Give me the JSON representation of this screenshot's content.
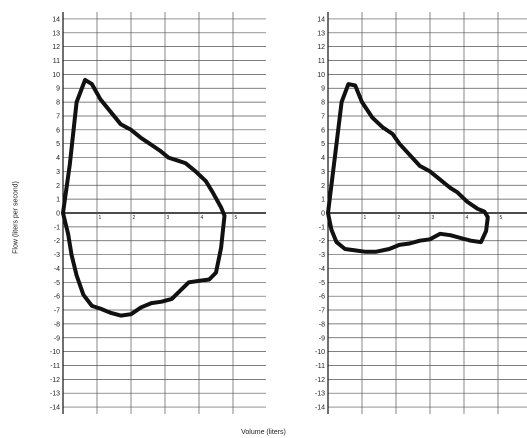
{
  "ylabel": "Flow (liters per second)",
  "xlabel": "Volume (liters)",
  "chart_data": [
    {
      "type": "line",
      "title": "",
      "xlabel": "Volume (liters)",
      "ylabel": "Flow (liters per second)",
      "xlim": [
        0,
        5.8
      ],
      "ylim": [
        -14.5,
        14.5
      ],
      "y_ticks": [
        14,
        13,
        12,
        11,
        10,
        9,
        8,
        7,
        6,
        5,
        4,
        3,
        2,
        1,
        0,
        -1,
        -2,
        -3,
        -4,
        -5,
        -6,
        -7,
        -8,
        -9,
        -10,
        -11,
        -12,
        -13,
        -14
      ],
      "x_ticks": [
        1,
        2,
        3,
        4,
        5
      ],
      "grid": true,
      "series": [
        {
          "x": [
            0,
            0.2,
            0.4,
            0.65,
            0.85,
            1.1,
            1.4,
            1.7,
            2.0,
            2.3,
            2.55,
            2.85,
            3.1,
            3.35,
            3.6,
            3.9,
            4.2,
            4.4,
            4.65,
            4.75,
            4.65,
            4.5,
            4.3,
            4.0,
            3.7,
            3.45,
            3.2,
            2.9,
            2.6,
            2.3,
            2.0,
            1.7,
            1.4,
            1.1,
            0.85,
            0.6,
            0.4,
            0.25,
            0.15,
            0
          ],
          "y": [
            0,
            3.5,
            8.0,
            9.6,
            9.3,
            8.2,
            7.3,
            6.4,
            6.0,
            5.4,
            5.0,
            4.5,
            4.0,
            3.8,
            3.6,
            3.0,
            2.3,
            1.5,
            0.4,
            -0.2,
            -2.5,
            -4.3,
            -4.8,
            -4.9,
            -5.0,
            -5.6,
            -6.2,
            -6.4,
            -6.5,
            -6.8,
            -7.3,
            -7.4,
            -7.2,
            -6.9,
            -6.7,
            -5.9,
            -4.5,
            -3.0,
            -1.5,
            0
          ]
        }
      ]
    },
    {
      "type": "line",
      "title": "",
      "xlabel": "Volume (liters)",
      "ylabel": "Flow (liters per second)",
      "xlim": [
        0,
        5.8
      ],
      "ylim": [
        -14.5,
        14.5
      ],
      "y_ticks": [
        14,
        13,
        12,
        11,
        10,
        9,
        8,
        7,
        6,
        5,
        4,
        3,
        2,
        1,
        0,
        -1,
        -2,
        -3,
        -4,
        -5,
        -6,
        -7,
        -8,
        -9,
        -10,
        -11,
        -12,
        -13,
        -14
      ],
      "x_ticks": [
        1,
        2,
        3,
        4,
        5
      ],
      "grid": true,
      "series": [
        {
          "x": [
            0,
            0.2,
            0.4,
            0.6,
            0.8,
            1.0,
            1.3,
            1.6,
            1.9,
            2.1,
            2.4,
            2.7,
            3.0,
            3.3,
            3.6,
            3.8,
            4.1,
            4.4,
            4.6,
            4.7,
            4.65,
            4.5,
            4.2,
            3.9,
            3.6,
            3.3,
            3.0,
            2.7,
            2.4,
            2.1,
            1.8,
            1.4,
            1.1,
            0.8,
            0.5,
            0.25,
            0.1,
            0
          ],
          "y": [
            0,
            4.0,
            8.0,
            9.3,
            9.2,
            8.0,
            6.9,
            6.2,
            5.7,
            5.0,
            4.2,
            3.4,
            3.0,
            2.4,
            1.8,
            1.5,
            0.8,
            0.3,
            0.1,
            -0.3,
            -1.3,
            -2.1,
            -2.0,
            -1.8,
            -1.6,
            -1.5,
            -1.9,
            -2.0,
            -2.2,
            -2.3,
            -2.6,
            -2.8,
            -2.8,
            -2.7,
            -2.6,
            -2.1,
            -1.2,
            0
          ]
        }
      ]
    }
  ]
}
